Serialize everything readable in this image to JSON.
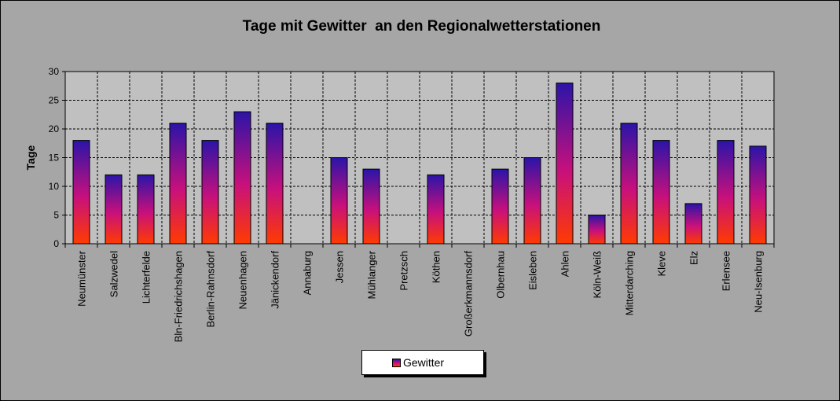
{
  "chart_data": {
    "type": "bar",
    "title": "Tage mit Gewitter  an den Regionalwetterstationen",
    "xlabel": "",
    "ylabel": "Tage",
    "ylim": [
      0,
      30
    ],
    "yticks": [
      0,
      5,
      10,
      15,
      20,
      25,
      30
    ],
    "grid": true,
    "legend_position": "bottom-center",
    "categories": [
      "Neumünster",
      "Salzwedel",
      "Lichterfelde",
      "Bln-Friedrichshagen",
      "Berlin-Rahnsdorf",
      "Neuenhagen",
      "Jänickendorf",
      "Annaburg",
      "Jessen",
      "Mühlanger",
      "Pretzsch",
      "Köthen",
      "Großerkmannsdorf",
      "Olbernhau",
      "Eisleben",
      "Ahlen",
      "Köln-Weiß",
      "Mitterdarching",
      "Kleve",
      "Elz",
      "Erlensee",
      "Neu-Isenburg"
    ],
    "series": [
      {
        "name": "Gewitter",
        "values": [
          18,
          12,
          12,
          21,
          18,
          23,
          21,
          0,
          15,
          13,
          0,
          12,
          0,
          13,
          15,
          28,
          5,
          21,
          18,
          7,
          18,
          17
        ]
      }
    ],
    "colors": {
      "bar_top": "#2b14a8",
      "bar_mid": "#c8107c",
      "bar_bottom": "#ff3b00",
      "plot_bg": "#c0c0c0",
      "chart_bg": "#a6a6a6"
    }
  }
}
